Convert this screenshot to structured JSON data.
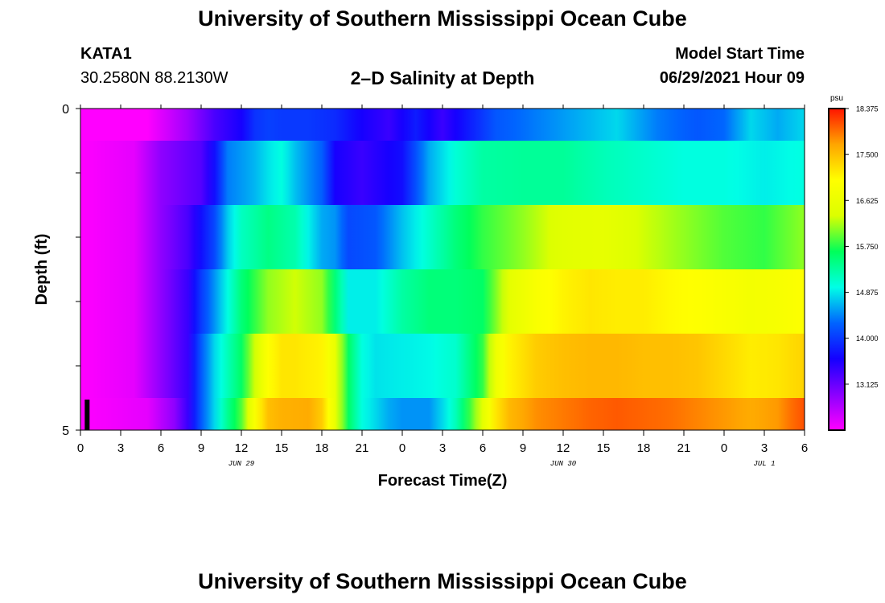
{
  "header": {
    "title": "University of Southern Mississippi Ocean Cube",
    "station_id": "KATA1",
    "station_coords": "30.2580N  88.2130W",
    "chart_title": "2–D Salinity at Depth",
    "model_start_label": "Model Start Time",
    "model_start_time": "06/29/2021 Hour 09"
  },
  "footer": {
    "title": "University of Southern Mississippi Ocean Cube"
  },
  "chart_data": {
    "type": "heatmap",
    "title": "2–D Salinity at Depth",
    "xlabel": "Forecast Time(Z)",
    "ylabel": "Depth (ft)",
    "x_tick_labels": [
      "0",
      "3",
      "6",
      "9",
      "12",
      "15",
      "18",
      "21",
      "0",
      "3",
      "6",
      "9",
      "12",
      "15",
      "18",
      "21",
      "0",
      "3",
      "6"
    ],
    "x_tick_hours": [
      0,
      3,
      6,
      9,
      12,
      15,
      18,
      21,
      24,
      27,
      30,
      33,
      36,
      39,
      42,
      45,
      48,
      51,
      54
    ],
    "date_labels": [
      {
        "hour": 12,
        "label": "JUN 29"
      },
      {
        "hour": 36,
        "label": "JUN 30"
      },
      {
        "hour": 51,
        "label": "JUL 1"
      }
    ],
    "xlim": [
      0,
      54
    ],
    "y_tick_labels": [
      "0",
      "5"
    ],
    "ylim": [
      0,
      5
    ],
    "current_time_hour": 0.5,
    "colorbar": {
      "unit": "psu",
      "min": 12.25,
      "max": 18.375,
      "tick_values": [
        18.375,
        17.5,
        16.625,
        15.75,
        14.875,
        14.0,
        13.125
      ],
      "tick_labels": [
        "18.375",
        "17.500",
        "16.625",
        "15.750",
        "14.875",
        "14.000",
        "13.125"
      ],
      "colors": [
        "#ff00ff",
        "#8a00ff",
        "#1400ff",
        "#0064ff",
        "#00ffe6",
        "#00ff5a",
        "#dcff00",
        "#ffff00",
        "#ffa500",
        "#ff1400"
      ]
    },
    "layers": [
      {
        "depth_top": 0,
        "depth_bottom": 0.5,
        "hours": [
          0,
          5,
          8,
          10,
          12,
          13,
          14,
          15,
          17,
          19,
          21,
          23,
          25,
          27,
          29,
          31,
          34,
          37,
          40,
          43,
          46,
          48,
          50,
          52,
          54
        ],
        "values": [
          12.25,
          12.25,
          12.8,
          13.3,
          13.6,
          13.95,
          14.05,
          14.0,
          14.0,
          13.9,
          13.6,
          13.4,
          13.8,
          13.4,
          13.8,
          14.2,
          14.4,
          14.6,
          14.8,
          14.4,
          14.2,
          14.3,
          14.8,
          14.6,
          14.8
        ]
      },
      {
        "depth_top": 0.5,
        "depth_bottom": 1.5,
        "hours": [
          0,
          4,
          6,
          9,
          10,
          11,
          13,
          14,
          15,
          16,
          18,
          19,
          21,
          22,
          24,
          26,
          28,
          30,
          33,
          36,
          39,
          42,
          45,
          48,
          51,
          54
        ],
        "values": [
          12.25,
          12.4,
          12.9,
          13.25,
          13.7,
          14.4,
          14.65,
          14.85,
          15.0,
          14.7,
          14.25,
          13.6,
          13.4,
          13.5,
          13.7,
          14.6,
          15.05,
          15.3,
          15.35,
          15.35,
          15.2,
          15.1,
          15.0,
          15.0,
          14.9,
          15.0
        ]
      },
      {
        "depth_top": 1.5,
        "depth_bottom": 2.5,
        "hours": [
          0,
          4,
          6,
          8,
          9,
          10,
          11,
          12,
          14,
          16,
          18,
          19,
          20,
          22,
          24,
          26,
          28,
          30,
          33,
          36,
          39,
          42,
          45,
          48,
          51,
          54
        ],
        "values": [
          12.25,
          12.4,
          12.9,
          13.3,
          13.7,
          14.1,
          14.75,
          15.15,
          15.45,
          15.25,
          14.6,
          14.5,
          14.1,
          14.2,
          14.7,
          15.1,
          15.5,
          15.8,
          16.1,
          16.45,
          16.55,
          16.3,
          16.1,
          15.9,
          15.8,
          16.1
        ]
      },
      {
        "depth_top": 2.5,
        "depth_bottom": 3.5,
        "hours": [
          0,
          4,
          6,
          8,
          9,
          10,
          11,
          12,
          14,
          16,
          18,
          19,
          20,
          22,
          24,
          26,
          28,
          30,
          32,
          34,
          36,
          38,
          40,
          42,
          44,
          46,
          48,
          50,
          52,
          54
        ],
        "values": [
          12.25,
          12.4,
          12.9,
          13.4,
          14.0,
          14.5,
          15.0,
          15.5,
          16.1,
          16.3,
          16.1,
          15.5,
          14.9,
          14.9,
          15.3,
          15.5,
          15.5,
          15.6,
          16.5,
          16.9,
          17.1,
          17.2,
          17.15,
          17.15,
          17.05,
          17.0,
          16.9,
          16.8,
          16.85,
          17.0
        ]
      },
      {
        "depth_top": 3.5,
        "depth_bottom": 4.5,
        "hours": [
          0,
          4,
          6,
          8,
          9,
          10,
          11,
          12,
          13,
          14,
          15,
          16,
          18,
          19,
          20,
          21,
          22,
          24,
          26,
          28,
          30,
          31,
          32,
          34,
          36,
          38,
          40,
          42,
          44,
          46,
          48,
          50,
          52,
          54
        ],
        "values": [
          12.25,
          12.4,
          12.9,
          13.4,
          14.2,
          14.8,
          15.2,
          15.6,
          16.3,
          17.0,
          17.2,
          17.2,
          17.1,
          16.6,
          15.6,
          15.0,
          14.85,
          14.9,
          14.95,
          15.1,
          15.8,
          16.7,
          17.1,
          17.4,
          17.5,
          17.55,
          17.55,
          17.5,
          17.5,
          17.45,
          17.3,
          17.15,
          17.2,
          17.35
        ]
      },
      {
        "depth_top": 4.5,
        "depth_bottom": 5,
        "hours": [
          0,
          5,
          7,
          8,
          9,
          10,
          11,
          12,
          13,
          14,
          15,
          17,
          18,
          19,
          20,
          21,
          22,
          23,
          24,
          26,
          27,
          28,
          29,
          30,
          31,
          32,
          34,
          36,
          38,
          40,
          42,
          44,
          46,
          48,
          50,
          52,
          53,
          54
        ],
        "values": [
          12.25,
          12.4,
          12.9,
          13.4,
          14.2,
          14.8,
          15.4,
          15.9,
          16.9,
          17.5,
          17.6,
          17.65,
          17.4,
          16.6,
          15.6,
          15.0,
          14.8,
          14.6,
          14.5,
          14.5,
          14.8,
          15.2,
          15.8,
          16.5,
          17.2,
          17.55,
          17.8,
          17.9,
          18.0,
          18.05,
          18.0,
          17.95,
          17.85,
          17.75,
          17.65,
          17.75,
          17.95,
          18.1
        ]
      }
    ]
  }
}
